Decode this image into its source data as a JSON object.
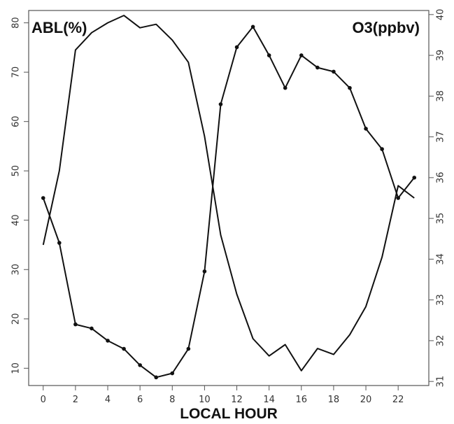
{
  "chart_data": {
    "type": "line",
    "title": "",
    "xlabel": "LOCAL HOUR",
    "ylabel_left": "ABL(%)",
    "ylabel_right": "O3(ppbv)",
    "xlim": [
      -0.9,
      23.9
    ],
    "ylim_left": [
      6.5,
      82.5
    ],
    "ylim_right": [
      30.9,
      40.1
    ],
    "x_ticks": [
      0,
      2,
      4,
      6,
      8,
      10,
      12,
      14,
      16,
      18,
      20,
      22
    ],
    "y_ticks_left": [
      10,
      20,
      30,
      40,
      50,
      60,
      70,
      80
    ],
    "y_ticks_right": [
      31,
      32,
      33,
      34,
      35,
      36,
      37,
      38,
      39,
      40
    ],
    "grid": false,
    "legend": "none",
    "series": [
      {
        "axis": "left",
        "markers": false,
        "x": [
          0,
          1,
          2,
          3,
          4,
          5,
          6,
          7,
          8,
          9,
          10,
          11,
          12,
          13,
          14,
          15,
          16,
          17,
          18,
          19,
          20,
          21,
          22,
          23
        ],
        "values": [
          35,
          50,
          74.5,
          78,
          80,
          81.5,
          79,
          79.7,
          76.5,
          72,
          57,
          37,
          25,
          16,
          12.5,
          14.8,
          9.5,
          14,
          12.8,
          16.8,
          22.5,
          32.5,
          47,
          44.5
        ]
      },
      {
        "axis": "right",
        "markers": true,
        "x": [
          0,
          1,
          2,
          3,
          4,
          5,
          6,
          7,
          8,
          9,
          10,
          11,
          12,
          13,
          14,
          15,
          16,
          17,
          18,
          19,
          20,
          21,
          22,
          23
        ],
        "values": [
          35.5,
          34.4,
          32.4,
          32.3,
          32.0,
          31.8,
          31.4,
          31.1,
          31.2,
          31.8,
          33.7,
          37.8,
          39.2,
          39.7,
          39.0,
          38.2,
          39.0,
          38.7,
          38.6,
          38.2,
          37.2,
          36.7,
          35.5,
          36.0
        ]
      }
    ]
  }
}
